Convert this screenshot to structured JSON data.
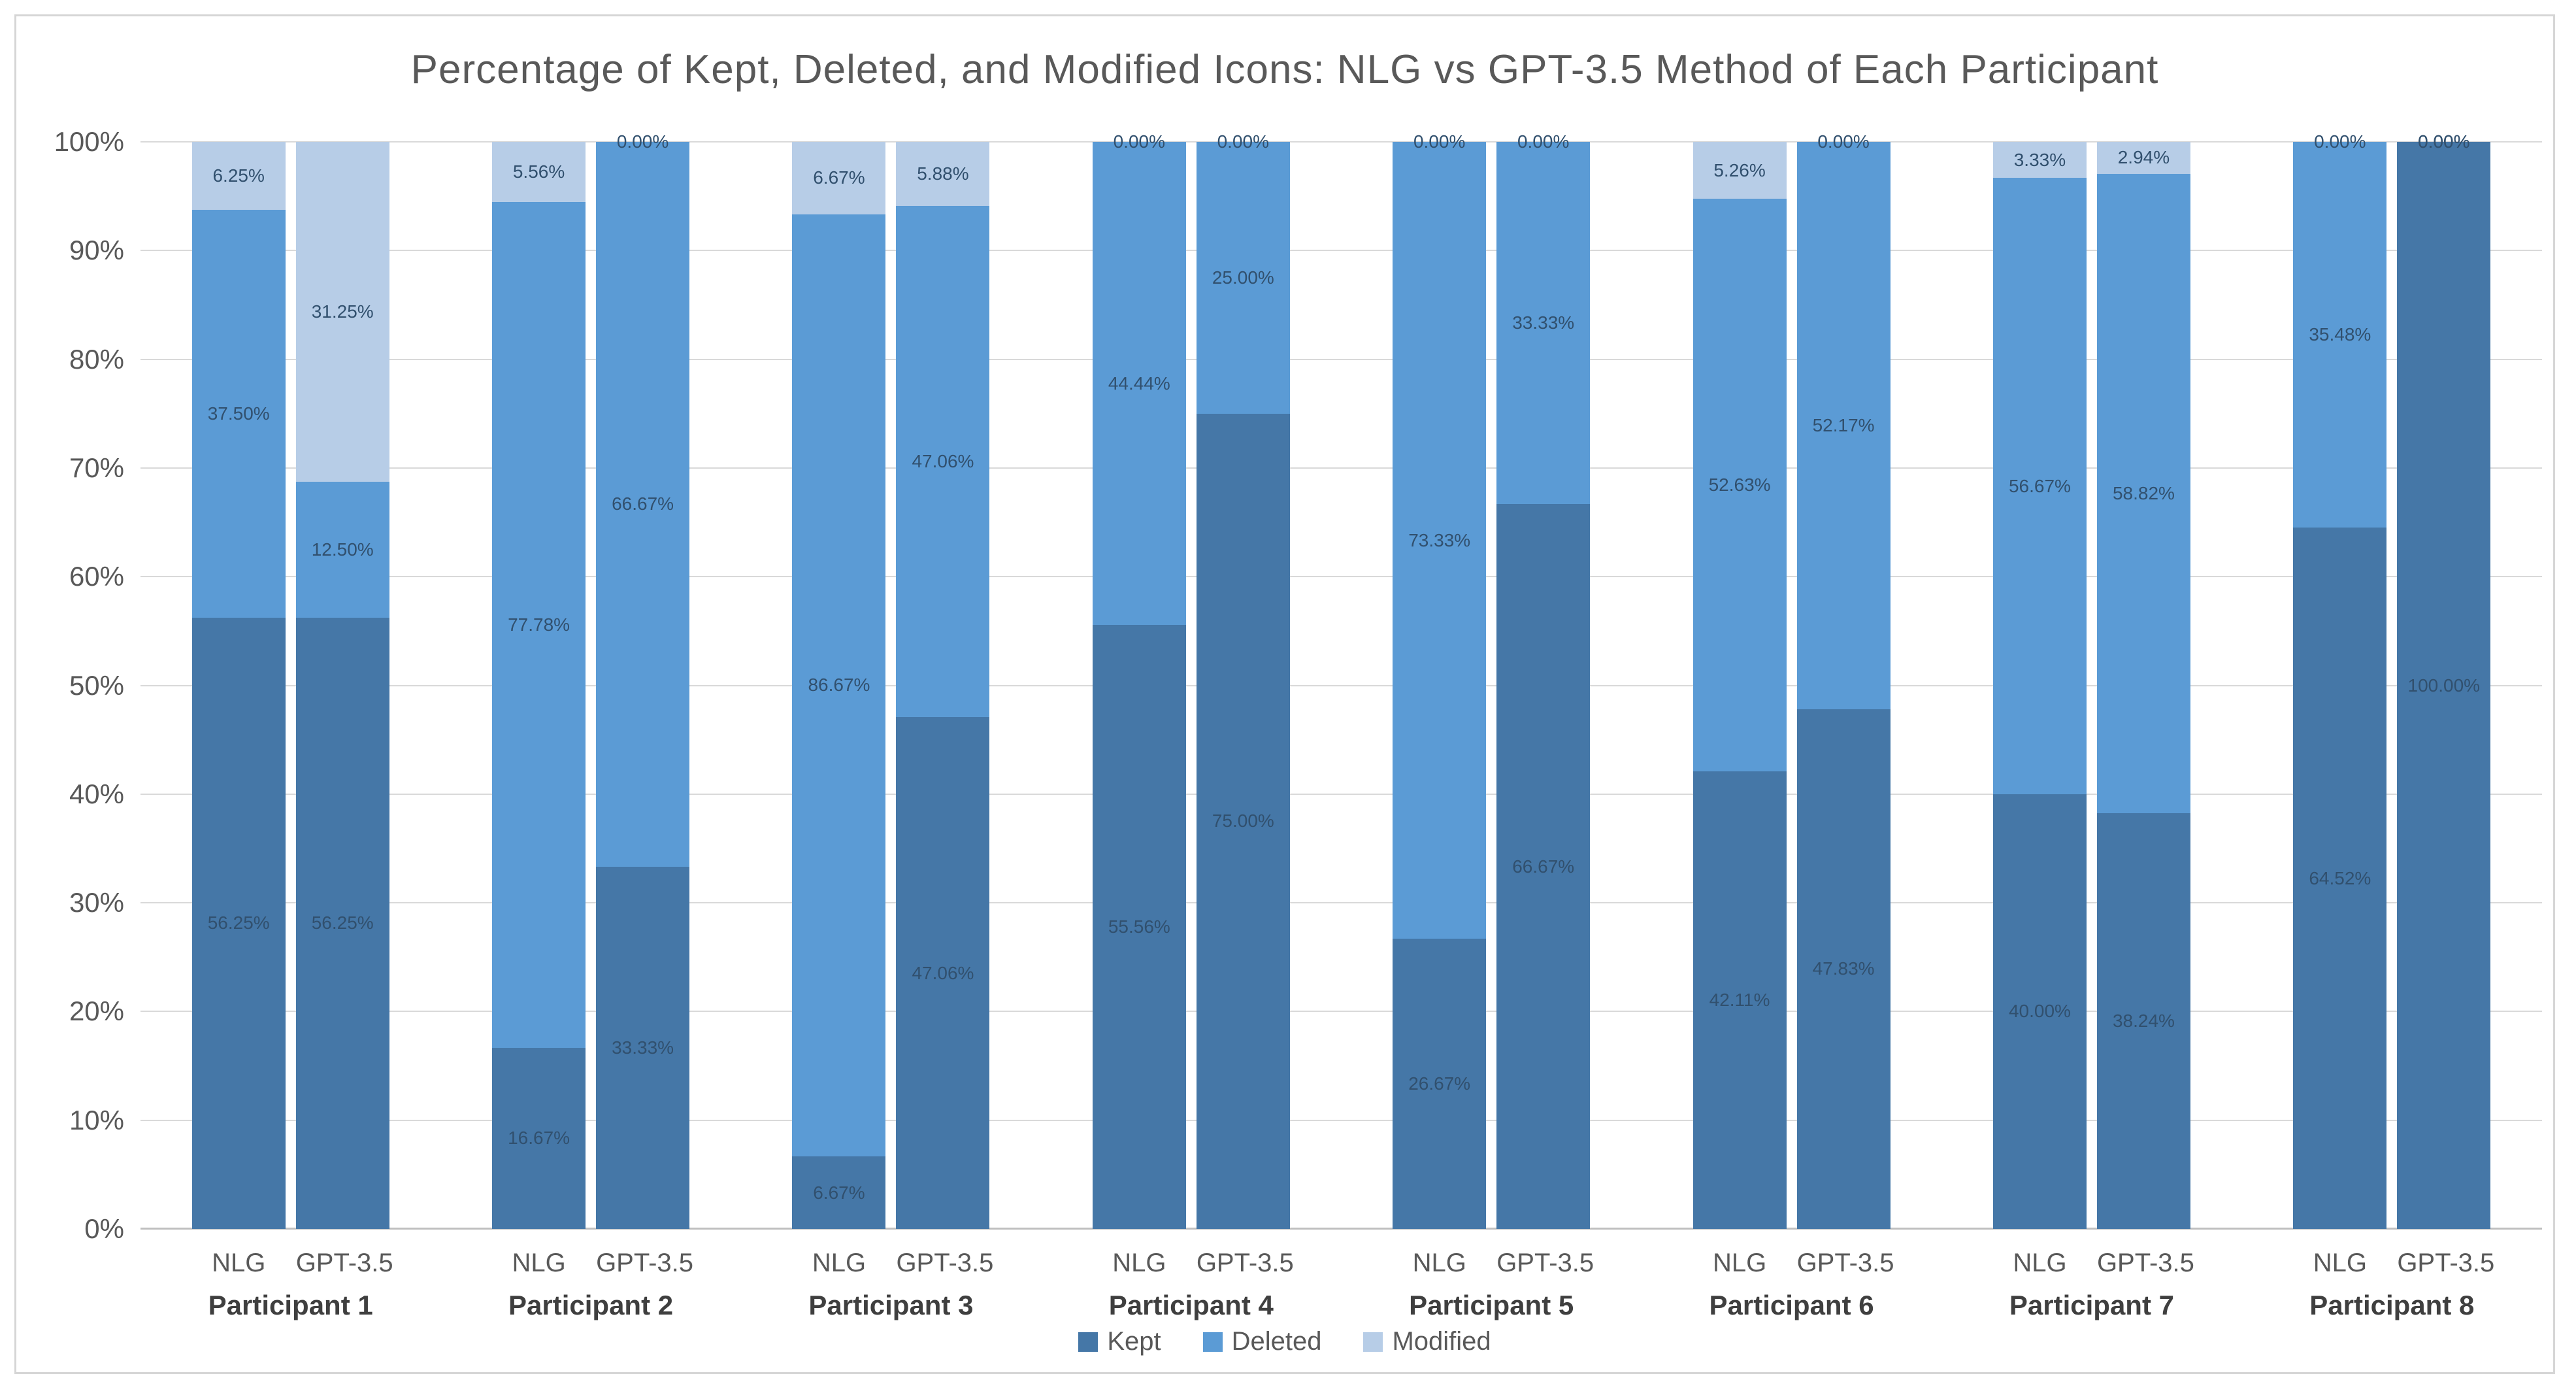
{
  "title": "Percentage of Kept, Deleted, and Modified Icons: NLG vs GPT-3.5 Method of Each Participant",
  "chart_data": {
    "type": "bar",
    "stacked": true,
    "title": "Percentage of Kept, Deleted, and Modified Icons: NLG vs GPT-3.5 Method of Each Participant",
    "legend_position": "bottom",
    "grid": "horizontal",
    "ylim": [
      0,
      100
    ],
    "y_ticks": [
      "100%",
      "90%",
      "80%",
      "70%",
      "60%",
      "50%",
      "40%",
      "30%",
      "20%",
      "10%",
      "0%"
    ],
    "methods": [
      "NLG",
      "GPT-3.5"
    ],
    "stack_order_bottom_to_top": [
      "Kept",
      "Deleted",
      "Modified"
    ],
    "series_colors": {
      "Kept": "#4577A7",
      "Deleted": "#5B9BD5",
      "Modified": "#B7CDE7"
    },
    "label_format": "0.00%",
    "data": [
      {
        "participant": "Participant 1",
        "values": {
          "NLG": {
            "Kept": 56.25,
            "Deleted": 37.5,
            "Modified": 6.25
          },
          "GPT-3.5": {
            "Kept": 56.25,
            "Deleted": 12.5,
            "Modified": 31.25
          }
        }
      },
      {
        "participant": "Participant 2",
        "values": {
          "NLG": {
            "Kept": 16.67,
            "Deleted": 77.78,
            "Modified": 5.56
          },
          "GPT-3.5": {
            "Kept": 33.33,
            "Deleted": 66.67,
            "Modified": 0.0
          }
        }
      },
      {
        "participant": "Participant 3",
        "values": {
          "NLG": {
            "Kept": 6.67,
            "Deleted": 86.67,
            "Modified": 6.67
          },
          "GPT-3.5": {
            "Kept": 47.06,
            "Deleted": 47.06,
            "Modified": 5.88
          }
        }
      },
      {
        "participant": "Participant 4",
        "values": {
          "NLG": {
            "Kept": 55.56,
            "Deleted": 44.44,
            "Modified": 0.0
          },
          "GPT-3.5": {
            "Kept": 75.0,
            "Deleted": 25.0,
            "Modified": 0.0
          }
        }
      },
      {
        "participant": "Participant 5",
        "values": {
          "NLG": {
            "Kept": 26.67,
            "Deleted": 73.33,
            "Modified": 0.0
          },
          "GPT-3.5": {
            "Kept": 66.67,
            "Deleted": 33.33,
            "Modified": 0.0
          }
        }
      },
      {
        "participant": "Participant 6",
        "values": {
          "NLG": {
            "Kept": 42.11,
            "Deleted": 52.63,
            "Modified": 5.26
          },
          "GPT-3.5": {
            "Kept": 47.83,
            "Deleted": 52.17,
            "Modified": 0.0
          }
        }
      },
      {
        "participant": "Participant 7",
        "values": {
          "NLG": {
            "Kept": 40.0,
            "Deleted": 56.67,
            "Modified": 3.33
          },
          "GPT-3.5": {
            "Kept": 38.24,
            "Deleted": 58.82,
            "Modified": 2.94
          }
        }
      },
      {
        "participant": "Participant 8",
        "values": {
          "NLG": {
            "Kept": 64.52,
            "Deleted": 35.48,
            "Modified": 0.0
          },
          "GPT-3.5": {
            "Kept": 100.0,
            "Deleted": 0.0,
            "Modified": 0.0
          }
        }
      }
    ]
  },
  "colors": {
    "gridline": "#d9d9d9",
    "axis_line": "#bfbfbf",
    "frame_border": "#d6d6d6",
    "title_text": "#595959",
    "axis_text": "#595959",
    "participant_text": "#3f3f3f",
    "data_label_text": "#31506e"
  }
}
